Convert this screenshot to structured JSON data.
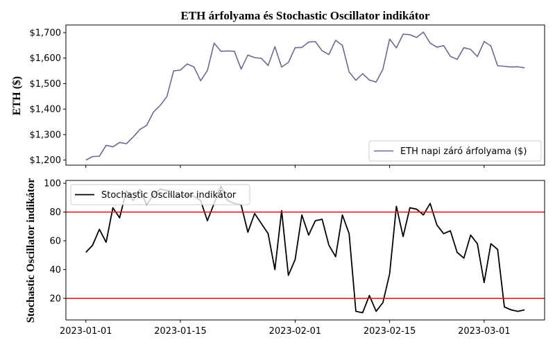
{
  "chart_data": [
    {
      "type": "line",
      "title": "ETH árfolyama és Stochastic Oscillator indikátor",
      "ylabel": "ETH ($)",
      "xlabel": "",
      "ylim": [
        1180,
        1730
      ],
      "yticks": [
        1200,
        1300,
        1400,
        1500,
        1600,
        1700
      ],
      "ytick_labels": [
        "$1,200",
        "$1,300",
        "$1,400",
        "$1,500",
        "$1,600",
        "$1,700"
      ],
      "legend_position": "lower-right",
      "grid": false,
      "color": "#6b6796",
      "series": [
        {
          "name": "ETH napi záró árfolyama ($)",
          "x": [
            "2023-01-01",
            "2023-01-02",
            "2023-01-03",
            "2023-01-04",
            "2023-01-05",
            "2023-01-06",
            "2023-01-07",
            "2023-01-08",
            "2023-01-09",
            "2023-01-10",
            "2023-01-11",
            "2023-01-12",
            "2023-01-13",
            "2023-01-14",
            "2023-01-15",
            "2023-01-16",
            "2023-01-17",
            "2023-01-18",
            "2023-01-19",
            "2023-01-20",
            "2023-01-21",
            "2023-01-22",
            "2023-01-23",
            "2023-01-24",
            "2023-01-25",
            "2023-01-26",
            "2023-01-27",
            "2023-01-28",
            "2023-01-29",
            "2023-01-30",
            "2023-01-31",
            "2023-02-01",
            "2023-02-02",
            "2023-02-03",
            "2023-02-04",
            "2023-02-05",
            "2023-02-06",
            "2023-02-07",
            "2023-02-08",
            "2023-02-09",
            "2023-02-10",
            "2023-02-11",
            "2023-02-12",
            "2023-02-13",
            "2023-02-14",
            "2023-02-15",
            "2023-02-16",
            "2023-02-17",
            "2023-02-18",
            "2023-02-19",
            "2023-02-20",
            "2023-02-21",
            "2023-02-22",
            "2023-02-23",
            "2023-02-24",
            "2023-02-25",
            "2023-02-26",
            "2023-02-27",
            "2023-02-28",
            "2023-03-01",
            "2023-03-02",
            "2023-03-03",
            "2023-03-04",
            "2023-03-05",
            "2023-03-06",
            "2023-03-07"
          ],
          "values": [
            1200,
            1214,
            1215,
            1258,
            1252,
            1269,
            1264,
            1290,
            1320,
            1336,
            1388,
            1414,
            1449,
            1550,
            1553,
            1577,
            1566,
            1511,
            1551,
            1659,
            1627,
            1628,
            1627,
            1557,
            1612,
            1602,
            1599,
            1571,
            1645,
            1565,
            1583,
            1641,
            1642,
            1663,
            1665,
            1629,
            1614,
            1670,
            1650,
            1546,
            1513,
            1539,
            1514,
            1506,
            1556,
            1675,
            1640,
            1694,
            1692,
            1681,
            1702,
            1659,
            1643,
            1649,
            1607,
            1595,
            1641,
            1634,
            1606,
            1665,
            1648,
            1570,
            1568,
            1565,
            1566,
            1562
          ]
        }
      ]
    },
    {
      "type": "line",
      "title": "",
      "ylabel": "Stochastic Oscillator indikátor",
      "xlabel": "",
      "ylim": [
        5,
        102
      ],
      "yticks": [
        20,
        40,
        60,
        80,
        100
      ],
      "ytick_labels": [
        "20",
        "40",
        "60",
        "80",
        "100"
      ],
      "xtick_labels": [
        "2023-01-01",
        "2023-01-15",
        "2023-02-01",
        "2023-02-15",
        "2023-03-01"
      ],
      "legend_position": "upper-left",
      "grid": false,
      "color": "#000000",
      "threshold_color": "#e01a1a",
      "thresholds": [
        80,
        20
      ],
      "series": [
        {
          "name": "Stochastic Oscillator indikátor",
          "x": [
            "2023-01-01",
            "2023-01-02",
            "2023-01-03",
            "2023-01-04",
            "2023-01-05",
            "2023-01-06",
            "2023-01-07",
            "2023-01-08",
            "2023-01-09",
            "2023-01-10",
            "2023-01-11",
            "2023-01-12",
            "2023-01-13",
            "2023-01-14",
            "2023-01-15",
            "2023-01-16",
            "2023-01-17",
            "2023-01-18",
            "2023-01-19",
            "2023-01-20",
            "2023-01-21",
            "2023-01-22",
            "2023-01-23",
            "2023-01-24",
            "2023-01-25",
            "2023-01-26",
            "2023-01-27",
            "2023-01-28",
            "2023-01-29",
            "2023-01-30",
            "2023-01-31",
            "2023-02-01",
            "2023-02-02",
            "2023-02-03",
            "2023-02-04",
            "2023-02-05",
            "2023-02-06",
            "2023-02-07",
            "2023-02-08",
            "2023-02-09",
            "2023-02-10",
            "2023-02-11",
            "2023-02-12",
            "2023-02-13",
            "2023-02-14",
            "2023-02-15",
            "2023-02-16",
            "2023-02-17",
            "2023-02-18",
            "2023-02-19",
            "2023-02-20",
            "2023-02-21",
            "2023-02-22",
            "2023-02-23",
            "2023-02-24",
            "2023-02-25",
            "2023-02-26",
            "2023-02-27",
            "2023-02-28",
            "2023-03-01",
            "2023-03-02",
            "2023-03-03",
            "2023-03-04",
            "2023-03-05",
            "2023-03-06",
            "2023-03-07"
          ],
          "values": [
            52,
            57,
            68,
            59,
            83,
            76,
            95,
            88,
            96,
            85,
            92,
            96,
            95,
            90,
            91,
            92,
            91,
            88,
            74,
            86,
            98,
            88,
            86,
            85,
            66,
            79,
            72,
            65,
            40,
            81,
            36,
            47,
            78,
            64,
            74,
            75,
            57,
            49,
            78,
            65,
            11,
            10,
            22,
            11,
            17,
            37,
            84,
            63,
            83,
            82,
            78,
            86,
            71,
            65,
            67,
            52,
            48,
            64,
            58,
            31,
            58,
            54,
            14,
            12,
            11,
            12
          ]
        }
      ]
    }
  ]
}
